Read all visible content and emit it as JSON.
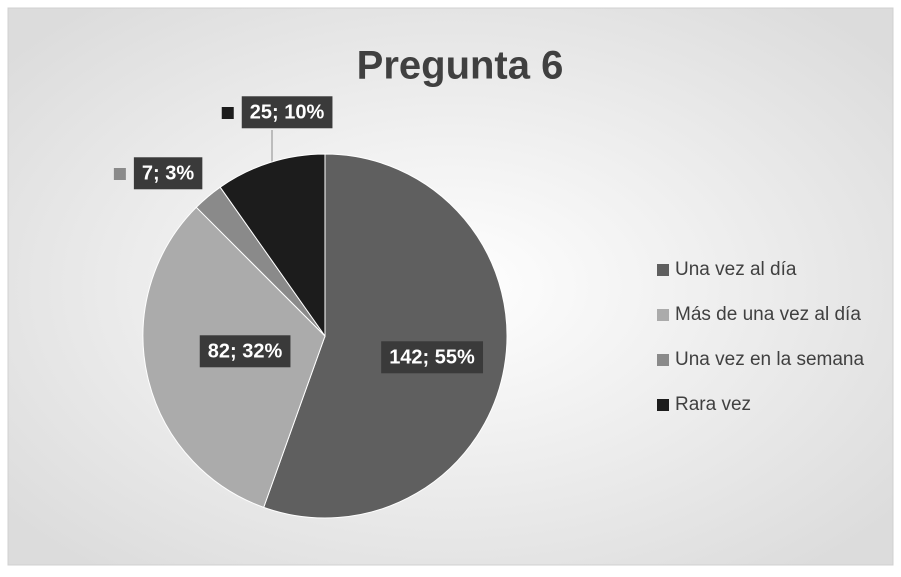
{
  "chart_data": {
    "type": "pie",
    "title": "Pregunta 6",
    "categories": [
      "Una vez al día",
      "Más de una vez al día",
      "Una vez en la semana",
      "Rara vez"
    ],
    "values": [
      142,
      82,
      7,
      25
    ],
    "value_labels": [
      "142; 55%",
      "82; 32%",
      "7; 3%",
      "25; 10%"
    ],
    "colors": [
      "#5f5f5f",
      "#ababab",
      "#8a8a8a",
      "#1c1c1c"
    ],
    "legend": "right"
  }
}
